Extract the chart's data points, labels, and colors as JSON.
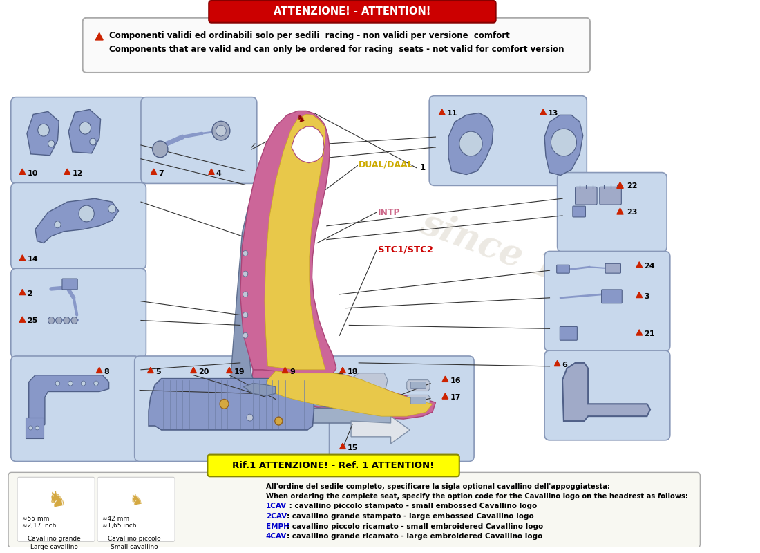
{
  "bg_color": "#ffffff",
  "attention_text": "ATTENZIONE! - ATTENTION!",
  "attention_bg": "#cc0000",
  "note_text_1": "Componenti validi ed ordinabili solo per sedili  racing - non validi per versione  comfort",
  "note_text_2": "Components that are valid and can only be ordered for racing  seats - not valid for comfort version",
  "ref_attention_text": "Rif.1 ATTENZIONE! - Ref. 1 ATTENTION!",
  "ref_attention_bg": "#ffff00",
  "bottom_text_1": "All'ordine del sedile completo, specificare la sigla optional cavallino dell'appoggiatesta:",
  "bottom_text_2": "When ordering the complete seat, specify the option code for the Cavallino logo on the headrest as follows:",
  "bottom_items": [
    {
      "code": "1CAV",
      "desc": " : cavallino piccolo stampato - small embossed Cavallino logo",
      "code_color": "#0000cc"
    },
    {
      "code": "2CAV",
      "desc": ": cavallino grande stampato - large embossed Cavallino logo",
      "code_color": "#0000cc"
    },
    {
      "code": "EMPH",
      "desc": ": cavallino piccolo ricamato - small embroidered Cavallino logo",
      "code_color": "#0000cc"
    },
    {
      "code": "4CAV",
      "desc": ": cavallino grande ricamato - large embroidered Cavallino logo",
      "code_color": "#0000cc"
    }
  ],
  "cavallino_grande_text": "≈55 mm\n≈2,17 inch",
  "cavallino_piccolo_text": "≈42 mm\n≈1,65 inch",
  "cavallino_grande_label": "Cavallino grande\nLarge cavallino",
  "cavallino_piccolo_label": "Cavallino piccolo\nSmall cavallino",
  "dual_daal_text": "DUAL/DAAL",
  "dual_daal_color": "#ccaa00",
  "intp_text": "INTP",
  "intp_color": "#cc6688",
  "stc_text": "STC1/STC2",
  "stc_color": "#cc0000",
  "seat_pink": "#cc6699",
  "seat_pink_dark": "#aa4477",
  "seat_yellow": "#e8c84a",
  "seat_yellow_dark": "#c8a820",
  "seat_metal": "#8898b8",
  "seat_metal_dark": "#607090",
  "seat_rail": "#a0b0c8",
  "part_box_fill": "#c8d8ec",
  "part_box_edge": "#8898b8",
  "line_color": "#333333",
  "triangle_color": "#cc2200",
  "watermark_color": "#e8e4dc"
}
